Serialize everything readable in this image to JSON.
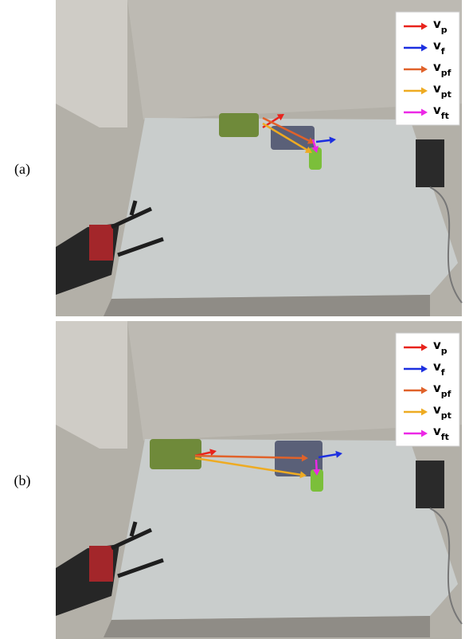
{
  "panels": [
    {
      "label": "(a)",
      "legend": [
        {
          "symbol": "v",
          "subscript": "p",
          "color": "#e8231c"
        },
        {
          "symbol": "v",
          "subscript": "f",
          "color": "#1c2fe0"
        },
        {
          "symbol": "v",
          "subscript": "pf",
          "color": "#e0622a"
        },
        {
          "symbol": "v",
          "subscript": "pt",
          "color": "#eeab22"
        },
        {
          "symbol": "v",
          "subscript": "ft",
          "color": "#ec28e6"
        }
      ]
    },
    {
      "label": "(b)",
      "legend": [
        {
          "symbol": "v",
          "subscript": "p",
          "color": "#e8231c"
        },
        {
          "symbol": "v",
          "subscript": "f",
          "color": "#1c2fe0"
        },
        {
          "symbol": "v",
          "subscript": "pf",
          "color": "#e0622a"
        },
        {
          "symbol": "v",
          "subscript": "pt",
          "color": "#eeab22"
        },
        {
          "symbol": "v",
          "subscript": "ft",
          "color": "#ec28e6"
        }
      ]
    }
  ]
}
